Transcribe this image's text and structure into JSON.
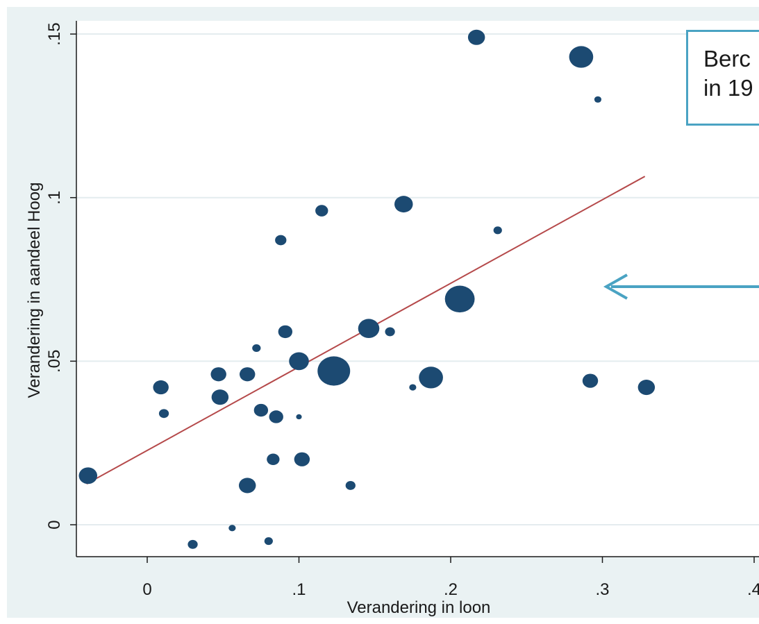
{
  "colors": {
    "plot_background": "#eaf2f3",
    "marker": "#1c4a72",
    "fit_line": "#b5494a",
    "annotation": "#4aa3c3",
    "axis": "#1a1a1a"
  },
  "annotation": {
    "line1": "Berc",
    "line2": "in 19",
    "arrow": "left-arrow-icon"
  },
  "chart_data": {
    "type": "scatter",
    "xlabel": "Verandering in loon",
    "ylabel": "Verandering in aandeel Hoog",
    "xlim": [
      -0.046,
      0.4
    ],
    "ylim": [
      -0.01,
      0.155
    ],
    "xticks": [
      {
        "value": 0,
        "label": "0"
      },
      {
        "value": 0.1,
        "label": ".1"
      },
      {
        "value": 0.2,
        "label": ".2"
      },
      {
        "value": 0.3,
        "label": ".3"
      },
      {
        "value": 0.4,
        "label": ".4"
      }
    ],
    "yticks": [
      {
        "value": 0,
        "label": "0"
      },
      {
        "value": 0.05,
        "label": ".05"
      },
      {
        "value": 0.1,
        "label": ".1"
      },
      {
        "value": 0.15,
        "label": ".15"
      }
    ],
    "grid": "horizontal",
    "fit_line": {
      "x": [
        -0.04,
        0.328
      ],
      "y": [
        0.0125,
        0.1065
      ]
    },
    "points": [
      {
        "x": -0.039,
        "y": 0.015,
        "size": 13
      },
      {
        "x": 0.009,
        "y": 0.042,
        "size": 11
      },
      {
        "x": 0.011,
        "y": 0.034,
        "size": 7
      },
      {
        "x": 0.03,
        "y": -0.006,
        "size": 7
      },
      {
        "x": 0.047,
        "y": 0.046,
        "size": 11
      },
      {
        "x": 0.048,
        "y": 0.039,
        "size": 12
      },
      {
        "x": 0.056,
        "y": -0.001,
        "size": 5
      },
      {
        "x": 0.066,
        "y": 0.046,
        "size": 11
      },
      {
        "x": 0.066,
        "y": 0.012,
        "size": 12
      },
      {
        "x": 0.072,
        "y": 0.054,
        "size": 6
      },
      {
        "x": 0.075,
        "y": 0.035,
        "size": 10
      },
      {
        "x": 0.08,
        "y": -0.005,
        "size": 6
      },
      {
        "x": 0.083,
        "y": 0.02,
        "size": 9
      },
      {
        "x": 0.085,
        "y": 0.033,
        "size": 10
      },
      {
        "x": 0.088,
        "y": 0.087,
        "size": 8
      },
      {
        "x": 0.091,
        "y": 0.059,
        "size": 10
      },
      {
        "x": 0.1,
        "y": 0.05,
        "size": 14
      },
      {
        "x": 0.1,
        "y": 0.033,
        "size": 4
      },
      {
        "x": 0.102,
        "y": 0.02,
        "size": 11
      },
      {
        "x": 0.115,
        "y": 0.096,
        "size": 9
      },
      {
        "x": 0.123,
        "y": 0.047,
        "size": 23
      },
      {
        "x": 0.134,
        "y": 0.012,
        "size": 7
      },
      {
        "x": 0.146,
        "y": 0.06,
        "size": 15
      },
      {
        "x": 0.16,
        "y": 0.059,
        "size": 7
      },
      {
        "x": 0.169,
        "y": 0.098,
        "size": 13
      },
      {
        "x": 0.175,
        "y": 0.042,
        "size": 5
      },
      {
        "x": 0.187,
        "y": 0.045,
        "size": 17
      },
      {
        "x": 0.206,
        "y": 0.069,
        "size": 21
      },
      {
        "x": 0.217,
        "y": 0.149,
        "size": 12
      },
      {
        "x": 0.231,
        "y": 0.09,
        "size": 6
      },
      {
        "x": 0.286,
        "y": 0.143,
        "size": 17
      },
      {
        "x": 0.292,
        "y": 0.044,
        "size": 11
      },
      {
        "x": 0.297,
        "y": 0.13,
        "size": 5
      },
      {
        "x": 0.329,
        "y": 0.042,
        "size": 12
      }
    ]
  }
}
